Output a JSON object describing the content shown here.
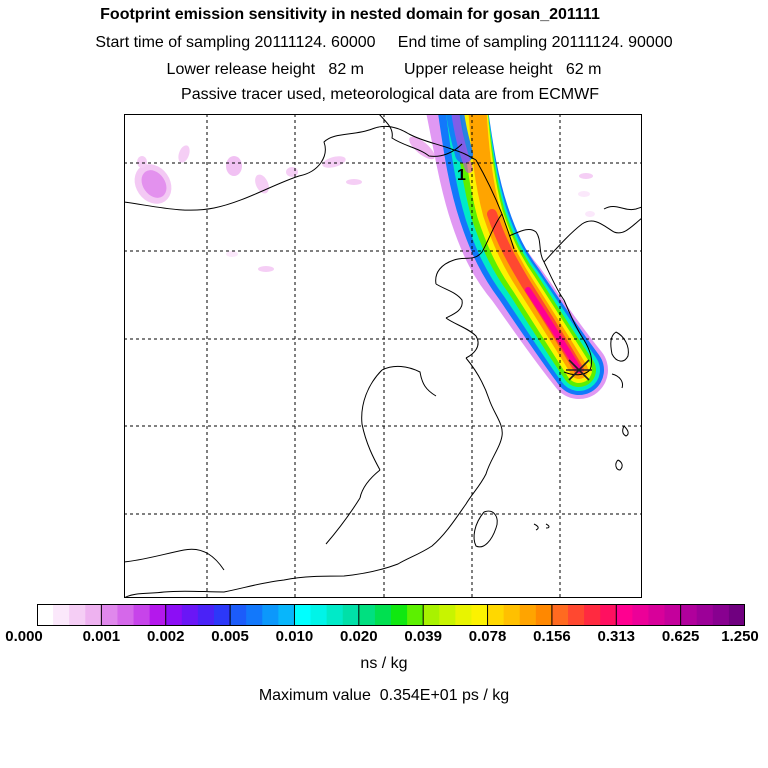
{
  "header": {
    "title": "Footprint emission sensitivity in nested domain for gosan_201111",
    "sampling_line": "Start time of sampling 20111124. 60000     End time of sampling 20111124. 90000",
    "release_line": "Lower release height   82 m         Upper release height   62 m",
    "tracer_line": "Passive tracer used, meteorological data are from ECMWF"
  },
  "map": {
    "release_marker_label": "1",
    "receptor_marker": "gosan-receptor"
  },
  "colorbar": {
    "tick_labels": [
      "0.000",
      "0.001",
      "0.002",
      "0.005",
      "0.010",
      "0.020",
      "0.039",
      "0.078",
      "0.156",
      "0.313",
      "0.625",
      "1.250"
    ],
    "colors": [
      "#ffffff",
      "#fbe8fb",
      "#f5cef5",
      "#eeb2f0",
      "#e088ec",
      "#d568ea",
      "#c744ea",
      "#b418ec",
      "#8c0ef5",
      "#6a16f6",
      "#4a22f7",
      "#2c38f9",
      "#1c5cfa",
      "#1278fb",
      "#0c98fb",
      "#08b6fb",
      "#00ffff",
      "#00f4e8",
      "#00eac8",
      "#00e0a8",
      "#00e080",
      "#00e050",
      "#10e810",
      "#5cf000",
      "#a8f200",
      "#c8f400",
      "#e8f400",
      "#fcf200",
      "#ffd800",
      "#ffc000",
      "#ffa400",
      "#ff8800",
      "#ff6a20",
      "#ff4830",
      "#ff2a40",
      "#ff1060",
      "#ff0090",
      "#ec0098",
      "#d8009a",
      "#c4009c",
      "#b0009c",
      "#9c0098",
      "#880090",
      "#700080"
    ],
    "units": "ns / kg"
  },
  "footer": {
    "max_value": "Maximum value  0.354E+01 ps / kg"
  }
}
